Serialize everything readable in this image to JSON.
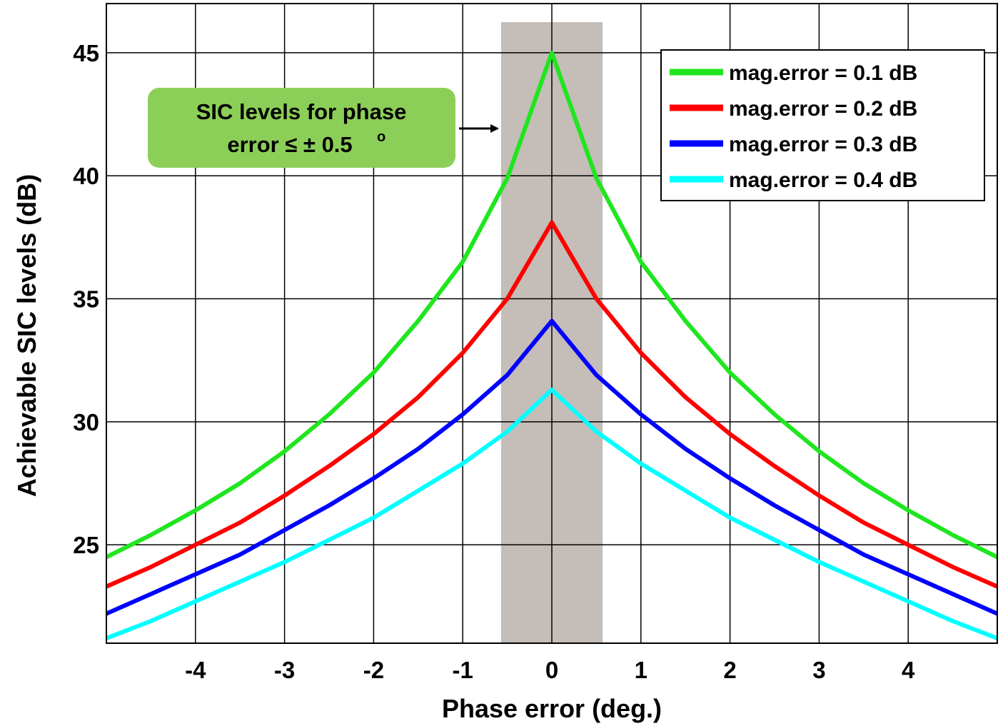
{
  "chart_data": {
    "type": "line",
    "title": "",
    "xlabel": "Phase error (deg.)",
    "ylabel": "Achievable SIC levels (dB)",
    "xlim": [
      -5,
      5
    ],
    "ylim": [
      21,
      47
    ],
    "xticks": [
      -4,
      -3,
      -2,
      -1,
      0,
      1,
      2,
      3,
      4
    ],
    "xtick_labels": [
      "-4",
      "-3",
      "-2",
      "-1",
      "0",
      "1",
      "2",
      "3",
      "4"
    ],
    "yticks": [
      25,
      30,
      35,
      40,
      45
    ],
    "ytick_labels": [
      "25",
      "30",
      "35",
      "40",
      "45"
    ],
    "grid": true,
    "legend_position": "top-right",
    "x": [
      -5,
      -4.5,
      -4,
      -3.5,
      -3,
      -2.5,
      -2,
      -1.5,
      -1,
      -0.5,
      0,
      0.5,
      1,
      1.5,
      2,
      2.5,
      3,
      3.5,
      4,
      4.5,
      5
    ],
    "series": [
      {
        "name": "mag.error = 0.1 dB",
        "color": "#1fe61f",
        "values": [
          24.5,
          25.4,
          26.4,
          27.5,
          28.8,
          30.3,
          32.0,
          34.1,
          36.5,
          39.9,
          45.0,
          39.9,
          36.5,
          34.1,
          32.0,
          30.3,
          28.8,
          27.5,
          26.4,
          25.4,
          24.5
        ]
      },
      {
        "name": "mag.error = 0.2 dB",
        "color": "#ff0000",
        "values": [
          23.3,
          24.1,
          25.0,
          25.9,
          27.0,
          28.2,
          29.5,
          31.0,
          32.8,
          35.0,
          38.1,
          35.0,
          32.8,
          31.0,
          29.5,
          28.2,
          27.0,
          25.9,
          25.0,
          24.1,
          23.3
        ]
      },
      {
        "name": "mag.error = 0.3 dB",
        "color": "#0000ff",
        "values": [
          22.2,
          23.0,
          23.8,
          24.6,
          25.6,
          26.6,
          27.7,
          28.9,
          30.3,
          31.9,
          34.1,
          31.9,
          30.3,
          28.9,
          27.7,
          26.6,
          25.6,
          24.6,
          23.8,
          23.0,
          22.2
        ]
      },
      {
        "name": "mag.error = 0.4 dB",
        "color": "#00ffff",
        "values": [
          21.2,
          21.9,
          22.7,
          23.5,
          24.3,
          25.2,
          26.1,
          27.2,
          28.3,
          29.6,
          31.3,
          29.6,
          28.3,
          27.2,
          26.1,
          25.2,
          24.3,
          23.5,
          22.7,
          21.9,
          21.2
        ]
      }
    ],
    "shaded_region": {
      "x_from": -0.57,
      "x_to": 0.57,
      "color": "#a69a92"
    },
    "annotation": {
      "line1": "SIC levels for phase",
      "line2": "error ≤ ± 0.5",
      "superscript": "o",
      "box_color": "#8ccf58"
    }
  }
}
